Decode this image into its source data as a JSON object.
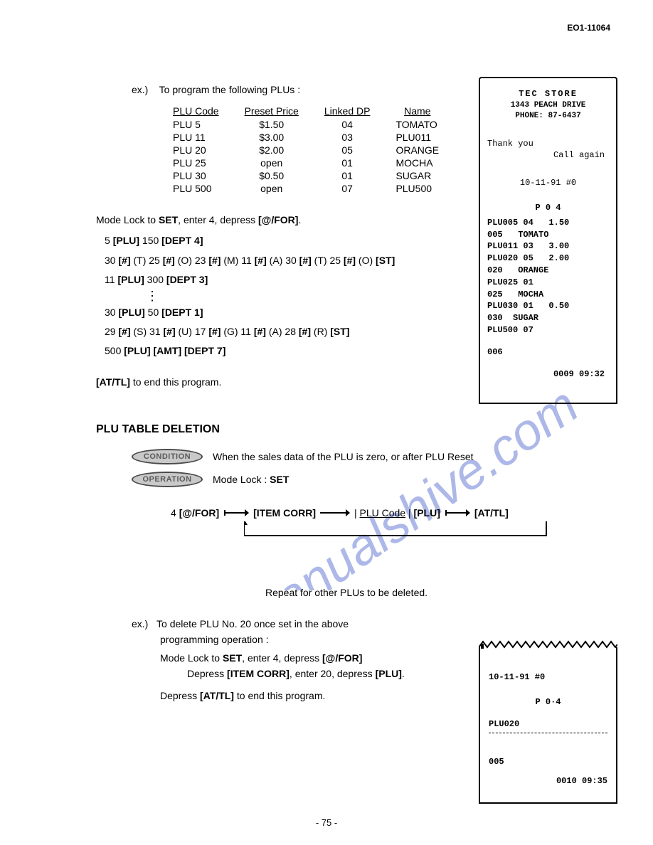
{
  "doc_id": "EO1-11064",
  "ex_label": "ex.)",
  "intro_text": "To program the following PLUs :",
  "plu_headers": [
    "PLU Code",
    "Preset Price",
    "Linked DP",
    "Name"
  ],
  "plu_rows": [
    [
      "PLU 5",
      "$1.50",
      "04",
      "TOMATO"
    ],
    [
      "PLU 11",
      "$3.00",
      "03",
      "PLU011"
    ],
    [
      "PLU 20",
      "$2.00",
      "05",
      "ORANGE"
    ],
    [
      "PLU 25",
      "open",
      "01",
      "MOCHA"
    ],
    [
      "PLU 30",
      "$0.50",
      "01",
      "SUGAR"
    ],
    [
      "PLU 500",
      "open",
      "07",
      "PLU500"
    ]
  ],
  "instr": {
    "lead_pre": "Mode Lock to ",
    "lead_set": "SET",
    "lead_mid": ", enter 4, depress ",
    "lead_key": "[@/FOR]",
    "s1_a": "5 ",
    "s1_b": "[PLU]",
    "s1_c": " 150 ",
    "s1_d": "[DEPT 4]",
    "s2_a": "30 ",
    "s2_b": "[#]",
    "s2_c": " (T) 25 ",
    "s2_d": "[#]",
    "s2_e": " (O) 23 ",
    "s2_f": "[#]",
    "s2_g": " (M) 11 ",
    "s2_h": "[#]",
    "s2_i": " (A) 30 ",
    "s2_j": "[#]",
    "s2_k": " (T) 25 ",
    "s2_l": "[#]",
    "s2_m": " (O) ",
    "s2_n": "[ST]",
    "s3_a": "11 ",
    "s3_b": "[PLU]",
    "s3_c": " 300 ",
    "s3_d": "[DEPT 3]",
    "s4_a": "30 ",
    "s4_b": "[PLU]",
    "s4_c": " 50 ",
    "s4_d": "[DEPT 1]",
    "s5_a": "29 ",
    "s5_b": "[#]",
    "s5_c": " (S) 31 ",
    "s5_d": "[#]",
    "s5_e": " (U) 17 ",
    "s5_f": "[#]",
    "s5_g": " (G) 11 ",
    "s5_h": "[#]",
    "s5_i": " (A) 28 ",
    "s5_j": "[#]",
    "s5_k": " (R) ",
    "s5_l": "[ST]",
    "s6_a": "500 ",
    "s6_b": "[PLU]",
    "s6_c": " ",
    "s6_d": "[AMT]",
    "s6_e": " ",
    "s6_f": "[DEPT 7]"
  },
  "end_key": "[AT/TL]",
  "end_text": " to end this program.",
  "section_title": "PLU TABLE DELETION",
  "cond_badge": "CONDITION",
  "cond_text": "When the sales data of the PLU is zero, or after PLU Reset",
  "oper_badge": "OPERATION",
  "oper_pre": "Mode Lock : ",
  "oper_set": "SET",
  "flow": {
    "n1": "4 ",
    "k1": "[@/FOR]",
    "k2": "[ITEM CORR]",
    "bar": "|",
    "u": "PLU Code",
    "k3": "[PLU]",
    "k4": "[AT/TL]"
  },
  "repeat_caption": "Repeat for other PLUs to be deleted.",
  "ex2": {
    "label": "ex.)",
    "line1": "To delete PLU No. 20 once set in the above",
    "line2": "programming operation :",
    "line3a": "Mode Lock to ",
    "line3b": "SET",
    "line3c": ", enter 4, depress ",
    "line3d": "[@/FOR]",
    "line4a": "Depress ",
    "line4b": "[ITEM CORR]",
    "line4c": ", enter 20, depress ",
    "line4d": "[PLU]",
    "line4e": ".",
    "line5a": "Depress ",
    "line5b": "[AT/TL]",
    "line5c": " to end this program."
  },
  "receipt1": {
    "store": "TEC  STORE",
    "address": "1343 PEACH DRIVE",
    "phone": "PHONE: 87-6437",
    "thank": "Thank you",
    "call": "Call again",
    "date": "10-11-91  #0",
    "p04": "P 0 4",
    "lines": [
      "PLU005 04   1.50",
      "005   TOMATO",
      "PLU011 03   3.00",
      "PLU020 05   2.00",
      "020   ORANGE",
      "PLU025 01",
      "025   MOCHA",
      "PLU030 01   0.50",
      "030  SUGAR",
      "PLU500 07"
    ],
    "r006": "006",
    "rtime": "0009 09:32"
  },
  "receipt2": {
    "date": "10-11-91 #0",
    "p04": "P 0·4",
    "plu": "PLU020",
    "r005": "005",
    "rtime": "0010 09:35"
  },
  "page_num": "- 75 -",
  "watermark_text": "manualshive.com",
  "colors": {
    "background": "#ffffff",
    "text": "#000000",
    "badge_fill": "#c9c9c9",
    "badge_border": "#4a4a4a",
    "watermark": "#6b7fd7"
  }
}
